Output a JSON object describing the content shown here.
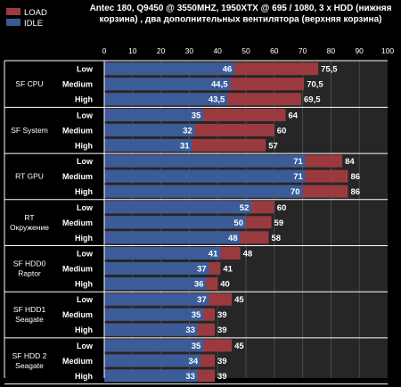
{
  "chart_data": {
    "type": "bar",
    "orientation": "horizontal",
    "title_lines": [
      "Antec 180, Q9450 @ 3550MHZ, 1950XTX @ 695 / 1080, 3 x HDD (нижняя",
      "корзина) , два дополнительных вентилятора (верхняя корзина)"
    ],
    "xlim": [
      0,
      100
    ],
    "xticks": [
      "0",
      "10",
      "20",
      "30",
      "40",
      "50",
      "60",
      "70",
      "80",
      "90",
      "100"
    ],
    "grid": true,
    "legend_position": "top-left",
    "series": [
      {
        "name": "LOAD",
        "color": "#9b3a3e"
      },
      {
        "name": "IDLE",
        "color": "#3b5c99"
      }
    ],
    "groups": [
      {
        "label_lines": [
          "SF CPU"
        ],
        "rows": [
          {
            "level": "Low",
            "idle": 46,
            "load": 75.5,
            "idle_label": "46",
            "load_label": "75,5"
          },
          {
            "level": "Medium",
            "idle": 44.5,
            "load": 70.5,
            "idle_label": "44,5",
            "load_label": "70,5"
          },
          {
            "level": "High",
            "idle": 43.5,
            "load": 69.5,
            "idle_label": "43,5",
            "load_label": "69,5"
          }
        ]
      },
      {
        "label_lines": [
          "SF System"
        ],
        "rows": [
          {
            "level": "Low",
            "idle": 35,
            "load": 64,
            "idle_label": "35",
            "load_label": "64"
          },
          {
            "level": "Medium",
            "idle": 32,
            "load": 60,
            "idle_label": "32",
            "load_label": "60"
          },
          {
            "level": "High",
            "idle": 31,
            "load": 57,
            "idle_label": "31",
            "load_label": "57"
          }
        ]
      },
      {
        "label_lines": [
          "RT  GPU"
        ],
        "rows": [
          {
            "level": "Low",
            "idle": 71,
            "load": 84,
            "idle_label": "71",
            "load_label": "84"
          },
          {
            "level": "Medium",
            "idle": 71,
            "load": 86,
            "idle_label": "71",
            "load_label": "86"
          },
          {
            "level": "High",
            "idle": 70,
            "load": 86,
            "idle_label": "70",
            "load_label": "86"
          }
        ]
      },
      {
        "label_lines": [
          "RT",
          "Окружение"
        ],
        "rows": [
          {
            "level": "Low",
            "idle": 52,
            "load": 60,
            "idle_label": "52",
            "load_label": "60"
          },
          {
            "level": "Medium",
            "idle": 50,
            "load": 59,
            "idle_label": "50",
            "load_label": "59"
          },
          {
            "level": "High",
            "idle": 48,
            "load": 58,
            "idle_label": "48",
            "load_label": "58"
          }
        ]
      },
      {
        "label_lines": [
          "SF HDD0",
          "Raptor"
        ],
        "rows": [
          {
            "level": "Low",
            "idle": 41,
            "load": 48,
            "idle_label": "41",
            "load_label": "48"
          },
          {
            "level": "Medium",
            "idle": 37,
            "load": 41,
            "idle_label": "37",
            "load_label": "41"
          },
          {
            "level": "High",
            "idle": 36,
            "load": 40,
            "idle_label": "36",
            "load_label": "40"
          }
        ]
      },
      {
        "label_lines": [
          "SF HDD1",
          "Seagate"
        ],
        "rows": [
          {
            "level": "Low",
            "idle": 37,
            "load": 45,
            "idle_label": "37",
            "load_label": "45"
          },
          {
            "level": "Medium",
            "idle": 35,
            "load": 39,
            "idle_label": "35",
            "load_label": "39"
          },
          {
            "level": "High",
            "idle": 33,
            "load": 39,
            "idle_label": "33",
            "load_label": "39"
          }
        ]
      },
      {
        "label_lines": [
          "SF HDD 2",
          "Seagate"
        ],
        "rows": [
          {
            "level": "Low",
            "idle": 35,
            "load": 45,
            "idle_label": "35",
            "load_label": "45"
          },
          {
            "level": "Medium",
            "idle": 34,
            "load": 39,
            "idle_label": "34",
            "load_label": "39"
          },
          {
            "level": "High",
            "idle": 33,
            "load": 39,
            "idle_label": "33",
            "load_label": "39"
          }
        ]
      }
    ],
    "colors": {
      "background": "#000000",
      "plot_background": "#262626",
      "gridline": "#4a4a4a",
      "row_separator": "#ffffff",
      "text": "#ffffff"
    }
  }
}
